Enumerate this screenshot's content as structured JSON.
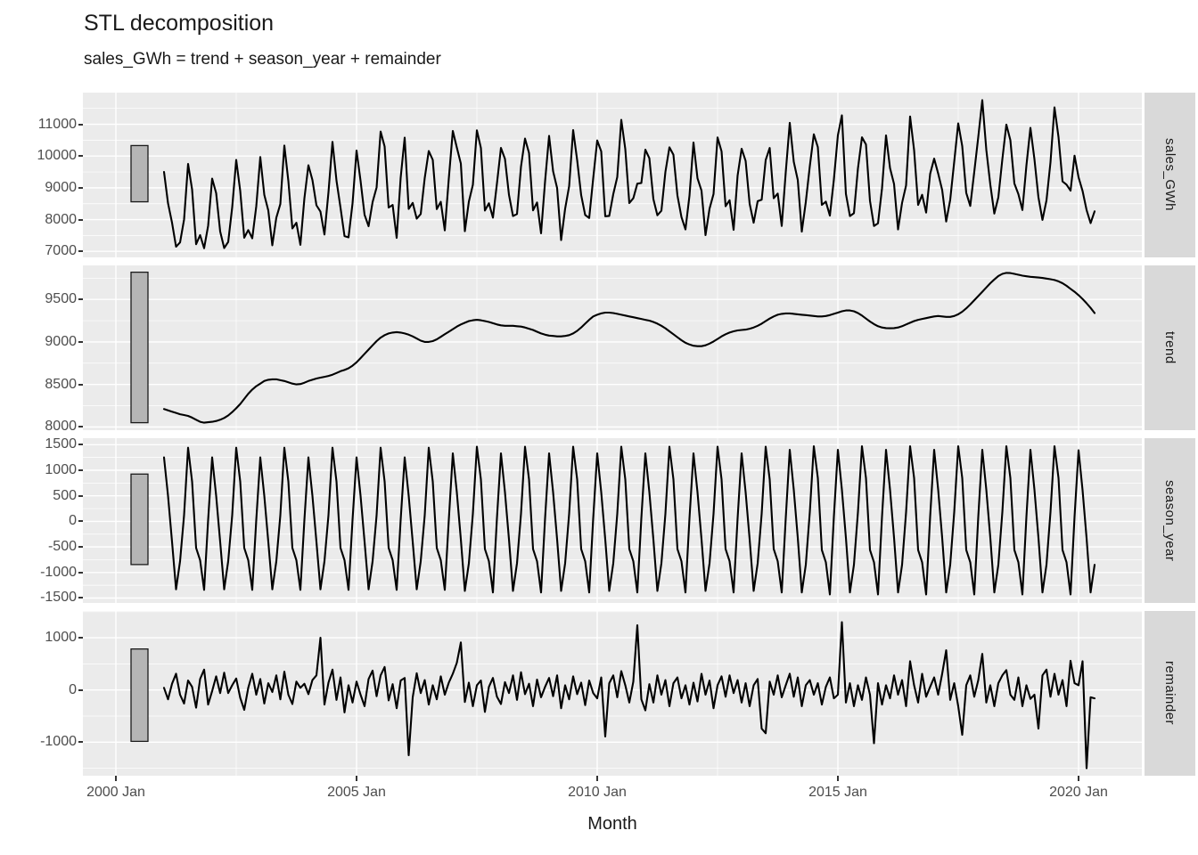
{
  "title": "STL decomposition",
  "subtitle": "sales_GWh = trend + season_year + remainder",
  "x_axis_title": "Month",
  "colors": {
    "background": "#ffffff",
    "panel_background": "#ebebeb",
    "grid_line": "#ffffff",
    "strip_background": "#d9d9d9",
    "strip_text": "#1a1a1a",
    "axis_text": "#4d4d4d",
    "tick_mark": "#333333",
    "data_line": "#000000",
    "scale_bar_fill": "#b5b5b5",
    "scale_bar_stroke": "#1a1a1a"
  },
  "chart_data": {
    "type": "line",
    "title": "STL decomposition",
    "subtitle": "sales_GWh = trend + season_year + remainder",
    "xlabel": "Month",
    "frequency": "monthly",
    "start": "2001 Jan",
    "end": "2020 May",
    "x_domain_years": [
      1999.31,
      2021.31
    ],
    "x_major_years": [
      2000,
      2005,
      2010,
      2015,
      2020
    ],
    "x_minor_years": [
      2002.5,
      2007.5,
      2012.5,
      2017.5
    ],
    "x_ticks": [
      "2000 Jan",
      "2005 Jan",
      "2010 Jan",
      "2015 Jan",
      "2020 Jan"
    ],
    "grid": true,
    "legend": "none",
    "facet_strip_side": "right",
    "panels": [
      {
        "label": "sales_GWh",
        "y_ticks": [
          7000,
          8000,
          9000,
          10000,
          11000
        ],
        "y_domain": [
          6810,
          11996
        ],
        "scale_bar": [
          8560,
          10330
        ],
        "values": [
          9500,
          8515,
          7900,
          7145,
          7280,
          8000,
          9750,
          8950,
          7225,
          7510,
          7100,
          7805,
          9290,
          8830,
          7625,
          7105,
          7295,
          8385,
          9880,
          8900,
          7430,
          7670,
          7410,
          8420,
          9970,
          8780,
          8285,
          7190,
          8060,
          8490,
          10330,
          9215,
          7720,
          7900,
          7205,
          8670,
          9710,
          9245,
          8450,
          8250,
          7530,
          8860,
          10445,
          9225,
          8375,
          7480,
          7440,
          8510,
          10170,
          9220,
          8150,
          7790,
          8550,
          9010,
          10770,
          10300,
          8380,
          8460,
          7425,
          9320,
          10580,
          8335,
          8525,
          8030,
          8175,
          9310,
          10160,
          9880,
          8330,
          8560,
          7660,
          9290,
          10790,
          10270,
          9765,
          7635,
          8565,
          9095,
          10810,
          10255,
          8285,
          8515,
          8060,
          9135,
          10255,
          9910,
          8780,
          8110,
          8175,
          9670,
          10550,
          10095,
          8290,
          8540,
          7570,
          9205,
          10635,
          9520,
          8995,
          7355,
          8340,
          9050,
          10820,
          9870,
          8770,
          8145,
          8050,
          9300,
          10490,
          10145,
          8105,
          8115,
          8800,
          9340,
          11140,
          10220,
          8520,
          8670,
          9130,
          9150,
          10200,
          9930,
          8645,
          8135,
          8280,
          9500,
          10275,
          10040,
          8755,
          8080,
          7690,
          8750,
          10425,
          9300,
          8910,
          7510,
          8340,
          8805,
          10585,
          10145,
          8420,
          8610,
          7675,
          9385,
          10230,
          9845,
          8495,
          7900,
          8580,
          8625,
          9875,
          10255,
          8670,
          8820,
          7800,
          9485,
          11045,
          9820,
          9245,
          7620,
          8555,
          9680,
          10685,
          10280,
          8460,
          8565,
          8125,
          9260,
          10655,
          11280,
          8810,
          8110,
          8200,
          9610,
          10590,
          10365,
          8590,
          7800,
          7885,
          8980,
          10650,
          9620,
          9120,
          7690,
          8525,
          9075,
          11245,
          10185,
          8460,
          8780,
          8220,
          9440,
          9918,
          9450,
          8930,
          7940,
          8620,
          9820,
          11030,
          10310,
          8840,
          8430,
          9500,
          10600,
          11760,
          10200,
          9100,
          8190,
          8700,
          9900,
          10990,
          10500,
          9138,
          8800,
          8300,
          9700,
          10890,
          9900,
          8700,
          7990,
          8600,
          9800,
          11530,
          10600,
          9200,
          9100,
          8910,
          10010,
          9330,
          8900,
          8300,
          7890,
          8260
        ]
      },
      {
        "label": "trend",
        "y_ticks": [
          8000,
          8500,
          9000,
          9500
        ],
        "y_domain": [
          7962,
          9900
        ],
        "scale_bar": [
          8050,
          9820
        ],
        "values": [
          8210,
          8195,
          8180,
          8165,
          8150,
          8140,
          8130,
          8110,
          8085,
          8060,
          8050,
          8055,
          8060,
          8070,
          8085,
          8105,
          8135,
          8175,
          8220,
          8270,
          8330,
          8390,
          8440,
          8480,
          8510,
          8540,
          8555,
          8560,
          8560,
          8550,
          8540,
          8525,
          8510,
          8500,
          8505,
          8520,
          8540,
          8555,
          8570,
          8580,
          8590,
          8600,
          8615,
          8635,
          8655,
          8670,
          8690,
          8720,
          8760,
          8810,
          8860,
          8910,
          8960,
          9010,
          9050,
          9080,
          9100,
          9110,
          9115,
          9110,
          9100,
          9085,
          9065,
          9040,
          9015,
          9000,
          9000,
          9010,
          9030,
          9060,
          9090,
          9120,
          9150,
          9180,
          9205,
          9225,
          9245,
          9255,
          9260,
          9255,
          9245,
          9235,
          9220,
          9205,
          9195,
          9190,
          9190,
          9190,
          9185,
          9180,
          9170,
          9155,
          9140,
          9120,
          9100,
          9085,
          9075,
          9070,
          9065,
          9065,
          9070,
          9080,
          9100,
          9130,
          9170,
          9215,
          9260,
          9300,
          9320,
          9335,
          9345,
          9345,
          9340,
          9330,
          9320,
          9310,
          9300,
          9290,
          9280,
          9270,
          9260,
          9250,
          9235,
          9215,
          9190,
          9160,
          9125,
          9090,
          9055,
          9020,
          8990,
          8970,
          8955,
          8950,
          8950,
          8960,
          8980,
          9005,
          9035,
          9065,
          9090,
          9110,
          9125,
          9135,
          9140,
          9145,
          9155,
          9170,
          9190,
          9215,
          9245,
          9275,
          9300,
          9320,
          9330,
          9335,
          9335,
          9330,
          9325,
          9320,
          9315,
          9310,
          9305,
          9300,
          9300,
          9305,
          9315,
          9330,
          9345,
          9360,
          9370,
          9370,
          9360,
          9340,
          9310,
          9275,
          9240,
          9210,
          9185,
          9170,
          9163,
          9160,
          9162,
          9170,
          9185,
          9205,
          9225,
          9245,
          9260,
          9270,
          9280,
          9290,
          9300,
          9305,
          9300,
          9295,
          9295,
          9305,
          9325,
          9355,
          9395,
          9440,
          9490,
          9540,
          9590,
          9640,
          9690,
          9735,
          9775,
          9800,
          9812,
          9810,
          9800,
          9790,
          9780,
          9772,
          9766,
          9762,
          9758,
          9752,
          9745,
          9738,
          9728,
          9712,
          9690,
          9660,
          9625,
          9590,
          9550,
          9505,
          9455,
          9400,
          9340
        ]
      },
      {
        "label": "season_year",
        "y_ticks": [
          -1500,
          -1000,
          -500,
          0,
          500,
          1000,
          1500
        ],
        "y_domain": [
          -1596,
          1627
        ],
        "scale_bar": [
          -845,
          925
        ],
        "values": [
          1250,
          500,
          -400,
          -1330,
          -780,
          120,
          1440,
          780,
          -520,
          -760,
          -1340,
          30,
          1250,
          500,
          -400,
          -1330,
          -780,
          120,
          1440,
          780,
          -520,
          -760,
          -1340,
          30,
          1250,
          500,
          -400,
          -1330,
          -780,
          120,
          1440,
          780,
          -520,
          -760,
          -1340,
          30,
          1250,
          500,
          -400,
          -1330,
          -780,
          120,
          1440,
          780,
          -520,
          -760,
          -1340,
          30,
          1250,
          500,
          -400,
          -1330,
          -780,
          120,
          1440,
          780,
          -520,
          -760,
          -1340,
          30,
          1250,
          500,
          -400,
          -1330,
          -780,
          120,
          1440,
          780,
          -520,
          -760,
          -1340,
          30,
          1330,
          570,
          -350,
          -1360,
          -820,
          150,
          1460,
          820,
          -540,
          -780,
          -1390,
          60,
          1330,
          570,
          -350,
          -1360,
          -820,
          150,
          1460,
          820,
          -540,
          -780,
          -1390,
          60,
          1330,
          570,
          -350,
          -1360,
          -820,
          150,
          1460,
          820,
          -540,
          -780,
          -1390,
          60,
          1330,
          570,
          -350,
          -1360,
          -820,
          150,
          1460,
          820,
          -540,
          -780,
          -1390,
          60,
          1330,
          570,
          -350,
          -1360,
          -820,
          150,
          1460,
          820,
          -540,
          -780,
          -1390,
          60,
          1330,
          570,
          -350,
          -1360,
          -820,
          150,
          1460,
          820,
          -540,
          -780,
          -1390,
          60,
          1330,
          570,
          -350,
          -1360,
          -820,
          150,
          1460,
          820,
          -540,
          -780,
          -1390,
          60,
          1400,
          620,
          -320,
          -1390,
          -850,
          180,
          1470,
          850,
          -560,
          -800,
          -1430,
          90,
          1400,
          620,
          -320,
          -1390,
          -850,
          180,
          1470,
          850,
          -560,
          -800,
          -1430,
          90,
          1400,
          620,
          -320,
          -1390,
          -850,
          180,
          1470,
          850,
          -560,
          -800,
          -1430,
          90,
          1400,
          620,
          -320,
          -1390,
          -850,
          180,
          1470,
          850,
          -560,
          -800,
          -1430,
          90,
          1400,
          620,
          -320,
          -1390,
          -850,
          180,
          1470,
          850,
          -560,
          -800,
          -1430,
          90,
          1400,
          620,
          -320,
          -1390,
          -850,
          180,
          1470,
          850,
          -560,
          -800,
          -1430,
          90,
          1390,
          610,
          -330,
          -1390,
          -850
        ]
      },
      {
        "label": "remainder",
        "y_ticks": [
          -1000,
          0,
          1000
        ],
        "y_domain": [
          -1643,
          1513
        ],
        "scale_bar": [
          -985,
          785
        ],
        "values": [
          40,
          -180,
          120,
          310,
          -90,
          -260,
          180,
          60,
          -340,
          210,
          390,
          -280,
          -20,
          260,
          -60,
          330,
          -60,
          90,
          220,
          -150,
          -380,
          40,
          310,
          -90,
          210,
          -260,
          130,
          -40,
          280,
          -180,
          350,
          -90,
          -270,
          160,
          40,
          120,
          -80,
          190,
          280,
          1000,
          -280,
          140,
          390,
          -190,
          240,
          -430,
          90,
          -240,
          160,
          -90,
          -310,
          210,
          370,
          -120,
          280,
          440,
          -200,
          110,
          -350,
          180,
          230,
          -1250,
          -140,
          320,
          -60,
          190,
          -280,
          90,
          -180,
          260,
          -90,
          140,
          310,
          520,
          910,
          -230,
          140,
          -310,
          90,
          180,
          -420,
          60,
          230,
          -130,
          -270,
          150,
          -60,
          280,
          -190,
          340,
          -80,
          120,
          -310,
          200,
          -140,
          60,
          230,
          -120,
          280,
          -350,
          90,
          -180,
          260,
          -80,
          140,
          -290,
          180,
          -60,
          -160,
          240,
          -890,
          130,
          280,
          -140,
          360,
          90,
          -240,
          160,
          1240,
          -180,
          -390,
          110,
          -240,
          280,
          -90,
          190,
          -310,
          130,
          240,
          -160,
          90,
          -280,
          140,
          -220,
          310,
          -90,
          180,
          -350,
          90,
          260,
          -130,
          280,
          -60,
          190,
          -240,
          130,
          -310,
          90,
          210,
          -740,
          -830,
          160,
          -90,
          280,
          -140,
          90,
          310,
          -130,
          240,
          -310,
          90,
          190,
          -90,
          130,
          -280,
          60,
          240,
          -160,
          -90,
          1300,
          -240,
          130,
          -310,
          90,
          -190,
          240,
          -90,
          -1020,
          130,
          -280,
          90,
          -160,
          280,
          -90,
          190,
          -310,
          550,
          90,
          -240,
          310,
          -130,
          60,
          240,
          -90,
          310,
          760,
          -190,
          130,
          -310,
          -860,
          90,
          280,
          -130,
          190,
          690,
          -240,
          90,
          -310,
          130,
          280,
          380,
          -90,
          -190,
          240,
          -310,
          90,
          -170,
          -90,
          -740,
          280,
          390,
          -130,
          310,
          -90,
          190,
          -310,
          560,
          130,
          90,
          550,
          -1500,
          -140,
          -160
        ]
      }
    ]
  }
}
